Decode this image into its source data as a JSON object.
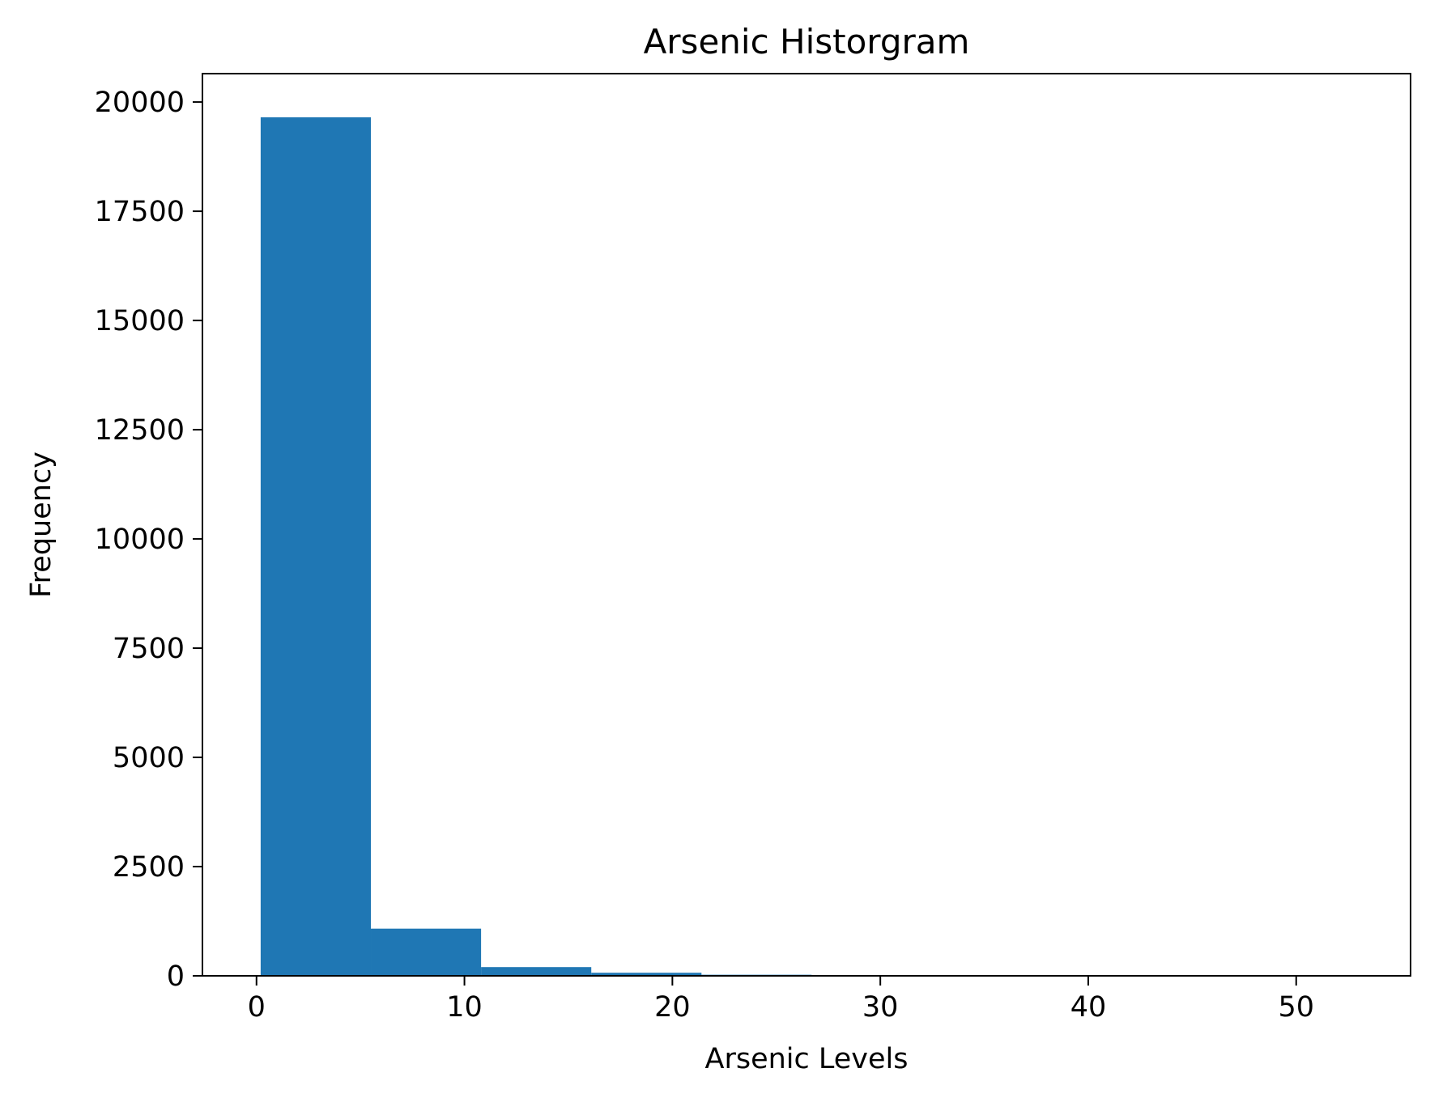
{
  "chart_data": {
    "type": "bar",
    "title": "Arsenic Historgram",
    "xlabel": "Arsenic Levels",
    "ylabel": "Frequency",
    "xlim": [
      -2.6,
      55.5
    ],
    "ylim": [
      0,
      20650
    ],
    "xticks": [
      0,
      10,
      20,
      30,
      40,
      50
    ],
    "yticks": [
      0,
      2500,
      5000,
      7500,
      10000,
      12500,
      15000,
      17500,
      20000
    ],
    "bins": [
      {
        "start": 0.2,
        "end": 5.5,
        "value": 19650
      },
      {
        "start": 5.5,
        "end": 10.8,
        "value": 1080
      },
      {
        "start": 10.8,
        "end": 16.1,
        "value": 200
      },
      {
        "start": 16.1,
        "end": 21.4,
        "value": 70
      },
      {
        "start": 21.4,
        "end": 26.7,
        "value": 25
      },
      {
        "start": 26.7,
        "end": 32.0,
        "value": 8
      },
      {
        "start": 32.0,
        "end": 37.3,
        "value": 4
      },
      {
        "start": 37.3,
        "end": 42.6,
        "value": 2
      },
      {
        "start": 42.6,
        "end": 47.9,
        "value": 1
      },
      {
        "start": 47.9,
        "end": 53.2,
        "value": 1
      }
    ],
    "bar_color": "#1f77b4",
    "grid": false,
    "legend": "none"
  }
}
